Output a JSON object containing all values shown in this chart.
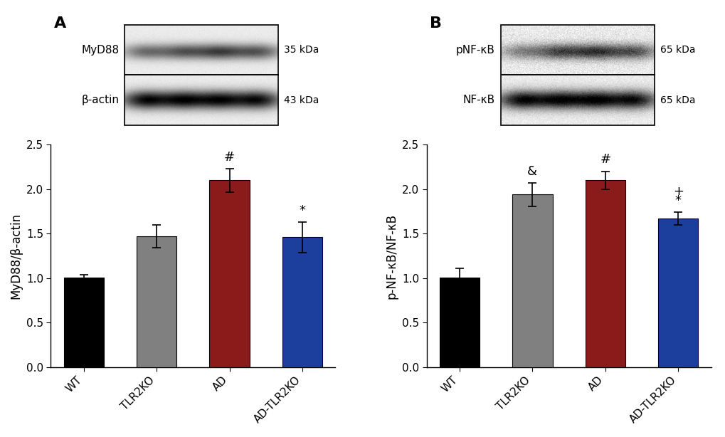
{
  "panel_A": {
    "categories": [
      "WT",
      "TLR2KO",
      "AD",
      "AD-TLR2KO"
    ],
    "values": [
      1.01,
      1.47,
      2.1,
      1.46
    ],
    "errors": [
      0.03,
      0.13,
      0.13,
      0.17
    ],
    "colors": [
      "#000000",
      "#808080",
      "#8B1A1A",
      "#1C3F9E"
    ],
    "ylabel": "MyD88/β-actin",
    "ylim": [
      0,
      2.5
    ],
    "yticks": [
      0.0,
      0.5,
      1.0,
      1.5,
      2.0,
      2.5
    ],
    "annotations": [
      "",
      "",
      "#",
      "*"
    ],
    "blot_label1": "MyD88",
    "blot_label2": "β-actin",
    "blot_kda1": "35 kDa",
    "blot_kda2": "43 kDa",
    "panel_label": "A",
    "band1_intensities": [
      0.45,
      0.38,
      0.28,
      0.35
    ],
    "band2_intensities": [
      0.12,
      0.15,
      0.16,
      0.13
    ]
  },
  "panel_B": {
    "categories": [
      "WT",
      "TLR2KO",
      "AD",
      "AD-TLR2KO"
    ],
    "values": [
      1.01,
      1.94,
      2.1,
      1.67
    ],
    "errors": [
      0.1,
      0.13,
      0.1,
      0.07
    ],
    "colors": [
      "#000000",
      "#808080",
      "#8B1A1A",
      "#1C3F9E"
    ],
    "ylabel": "p-NF-κB/NF-κB",
    "ylim": [
      0,
      2.5
    ],
    "yticks": [
      0.0,
      0.5,
      1.0,
      1.5,
      2.0,
      2.5
    ],
    "annotations_line1": [
      "",
      "&",
      "#",
      "*"
    ],
    "annotations_line2": [
      "",
      "",
      "",
      "+"
    ],
    "blot_label1": "pNF-κB",
    "blot_label2": "NF-κB",
    "blot_kda1": "65 kDa",
    "blot_kda2": "65 kDa",
    "panel_label": "B",
    "band1_intensities": [
      0.55,
      0.3,
      0.22,
      0.32
    ],
    "band2_intensities": [
      0.1,
      0.14,
      0.12,
      0.13
    ]
  },
  "bg_color": "#ffffff",
  "tick_fontsize": 11,
  "label_fontsize": 12,
  "annotation_fontsize": 13,
  "panel_label_fontsize": 16,
  "bar_width": 0.55,
  "capsize": 4
}
